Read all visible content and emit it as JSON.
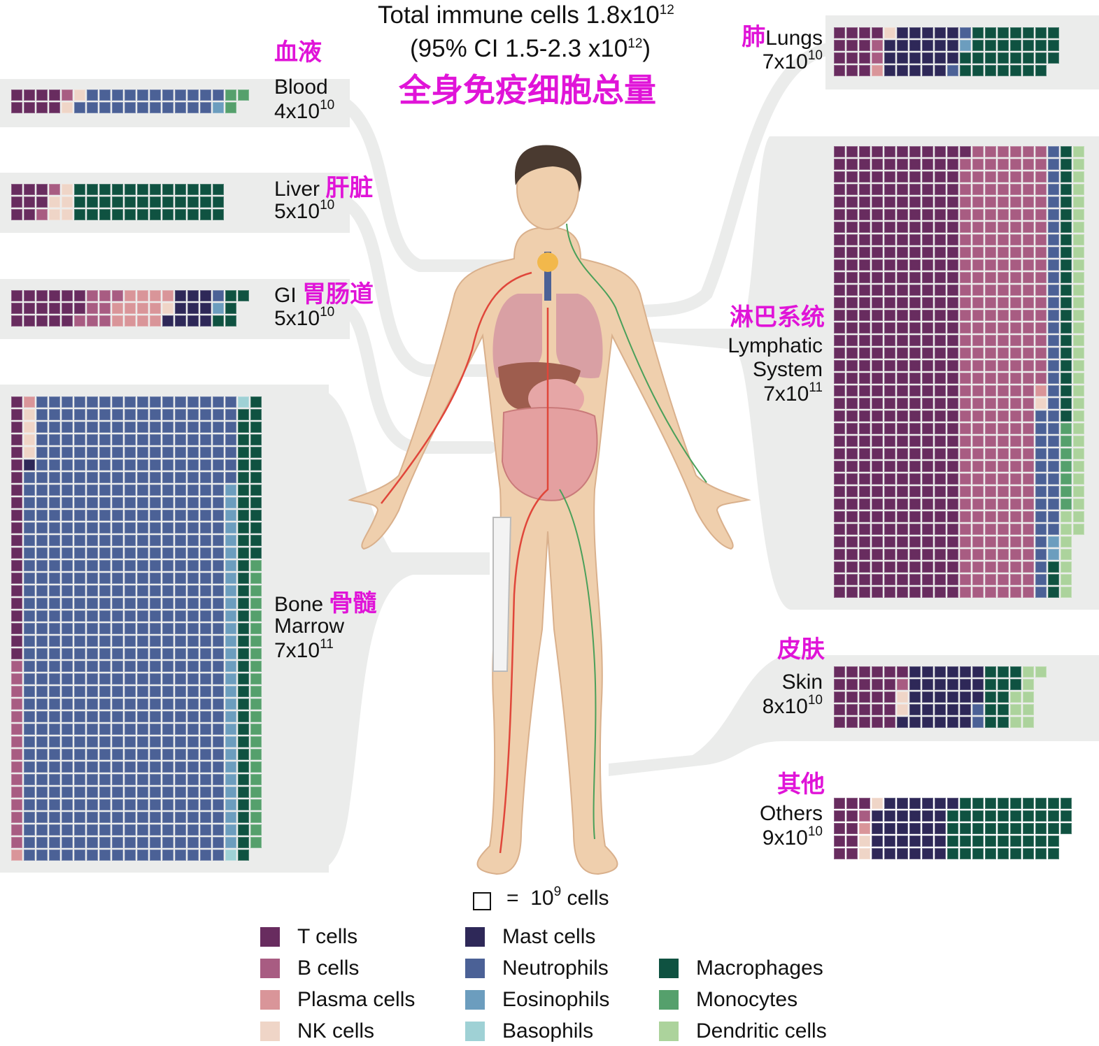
{
  "header": {
    "title_line1": "Total immune cells 1.8x10",
    "title_line1_exp": "12",
    "title_line2_pre": "(95% CI 1.5-2.3 x10",
    "title_line2_exp": "12",
    "title_line2_post": ")",
    "title_cn": "全身免疫细胞总量"
  },
  "colors": {
    "accent_cn": "#e014d8",
    "band": "#ebeceb"
  },
  "cell_types": [
    {
      "label": "T cells",
      "color": "#682c5f"
    },
    {
      "label": "B cells",
      "color": "#a85c82"
    },
    {
      "label": "Plasma cells",
      "color": "#d99599"
    },
    {
      "label": "NK cells",
      "color": "#efd5c7"
    },
    {
      "label": "Mast cells",
      "color": "#2e2858"
    },
    {
      "label": "Neutrophils",
      "color": "#4b6196"
    },
    {
      "label": "Eosinophils",
      "color": "#6c9dbe"
    },
    {
      "label": "Basophils",
      "color": "#9fd1d5"
    },
    {
      "label": "Macrophages",
      "color": "#0f5241"
    },
    {
      "label": "Monocytes",
      "color": "#55a06c"
    },
    {
      "label": "Dendritic cells",
      "color": "#acd39c"
    }
  ],
  "unit_legend": {
    "eq": "=",
    "base": "10",
    "exp": "9",
    "suffix": "cells"
  },
  "organs": [
    {
      "id": "blood",
      "name_cn": "血液",
      "name_en": "Blood",
      "count": "4x10",
      "exp": "10",
      "composition": {
        "T cells": 8,
        "B cells": 1,
        "NK cells": 2,
        "Neutrophils": 22,
        "Eosinophils": 1,
        "Monocytes": 3
      }
    },
    {
      "id": "liver",
      "name_cn": "肝脏",
      "name_en": "Liver",
      "count": "5x10",
      "exp": "10",
      "composition": {
        "T cells": 8,
        "B cells": 2,
        "NK cells": 5,
        "Macrophages": 36
      }
    },
    {
      "id": "gi",
      "name_cn": "胃肠道",
      "name_en": "GI",
      "count": "5x10",
      "exp": "10",
      "composition": {
        "T cells": 17,
        "B cells": 8,
        "Plasma cells": 12,
        "NK cells": 1,
        "Mast cells": 10,
        "Neutrophils": 1,
        "Eosinophils": 1,
        "Macrophages": 5
      }
    },
    {
      "id": "bone-marrow",
      "name_cn": "骨髓",
      "name_en": "Bone",
      "name_en2": "Marrow",
      "count": "7x10",
      "exp": "11",
      "composition": {
        "T cells": 21,
        "B cells": 15,
        "Plasma cells": 2,
        "NK cells": 4,
        "Mast cells": 1,
        "Neutrophils": 593,
        "Eosinophils": 29,
        "Basophils": 2,
        "Macrophages": 49,
        "Monocytes": 23
      }
    },
    {
      "id": "lungs",
      "name_cn": "肺",
      "name_en": "Lungs",
      "count": "7x10",
      "exp": "10",
      "composition": {
        "T cells": 13,
        "B cells": 2,
        "Plasma cells": 1,
        "NK cells": 1,
        "Mast cells": 22,
        "Neutrophils": 2,
        "Eosinophils": 1,
        "Macrophages": 29
      }
    },
    {
      "id": "lymphatic",
      "name_cn": "淋巴系统",
      "name_en": "Lymphatic",
      "name_en2": "System",
      "count": "7x10",
      "exp": "11",
      "composition": {
        "T cells": 361,
        "B cells": 234,
        "Plasma cells": 1,
        "NK cells": 1,
        "Neutrophils": 46,
        "Eosinophils": 2,
        "Macrophages": 25,
        "Monocytes": 7,
        "Dendritic cells": 38
      }
    },
    {
      "id": "skin",
      "name_cn": "皮肤",
      "name_en": "Skin",
      "count": "8x10",
      "exp": "10",
      "composition": {
        "T cells": 26,
        "B cells": 1,
        "NK cells": 2,
        "Mast cells": 29,
        "Neutrophils": 2,
        "Macrophages": 12,
        "Dendritic cells": 9
      }
    },
    {
      "id": "others",
      "name_cn": "其他",
      "name_en": "Others",
      "count": "9x10",
      "exp": "10",
      "composition": {
        "T cells": 11,
        "B cells": 1,
        "Plasma cells": 1,
        "NK cells": 3,
        "Mast cells": 30,
        "Macrophages": 47
      }
    }
  ]
}
